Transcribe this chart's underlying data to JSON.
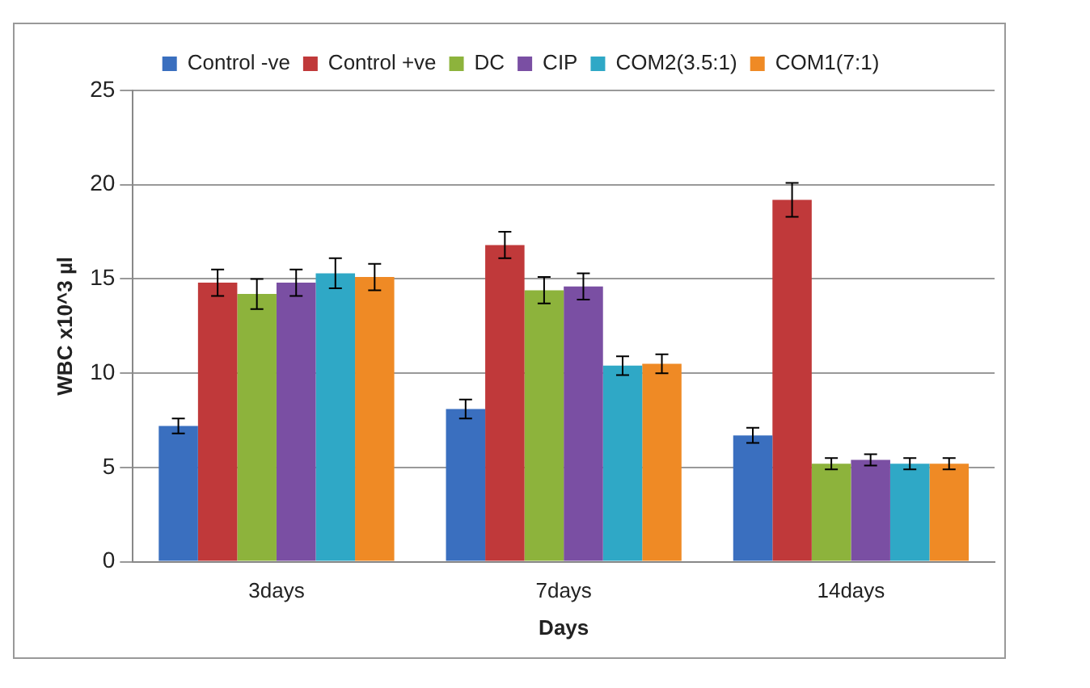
{
  "chart_data": {
    "type": "bar",
    "xlabel": "Days",
    "ylabel": "WBC x10^3 µl",
    "categories": [
      "3days",
      "7days",
      "14days"
    ],
    "series": [
      {
        "name": "Control -ve",
        "color": "#3a6fbf",
        "values": [
          7.2,
          8.1,
          6.7
        ],
        "errors": [
          0.4,
          0.5,
          0.4
        ]
      },
      {
        "name": "Control +ve",
        "color": "#c0393a",
        "values": [
          14.8,
          16.8,
          19.2
        ],
        "errors": [
          0.7,
          0.7,
          0.9
        ]
      },
      {
        "name": "DC",
        "color": "#8db33c",
        "values": [
          14.2,
          14.4,
          5.2
        ],
        "errors": [
          0.8,
          0.7,
          0.3
        ]
      },
      {
        "name": "CIP",
        "color": "#7a4fa3",
        "values": [
          14.8,
          14.6,
          5.4
        ],
        "errors": [
          0.7,
          0.7,
          0.3
        ]
      },
      {
        "name": "COM2(3.5:1)",
        "color": "#2fa8c6",
        "values": [
          15.3,
          10.4,
          5.2
        ],
        "errors": [
          0.8,
          0.5,
          0.3
        ]
      },
      {
        "name": "COM1(7:1)",
        "color": "#ef8a25",
        "values": [
          15.1,
          10.5,
          5.2
        ],
        "errors": [
          0.7,
          0.5,
          0.3
        ]
      }
    ],
    "ylim": [
      0,
      25
    ],
    "yticks": [
      0,
      5,
      10,
      15,
      20,
      25
    ],
    "grid": "y",
    "legend": "top"
  }
}
